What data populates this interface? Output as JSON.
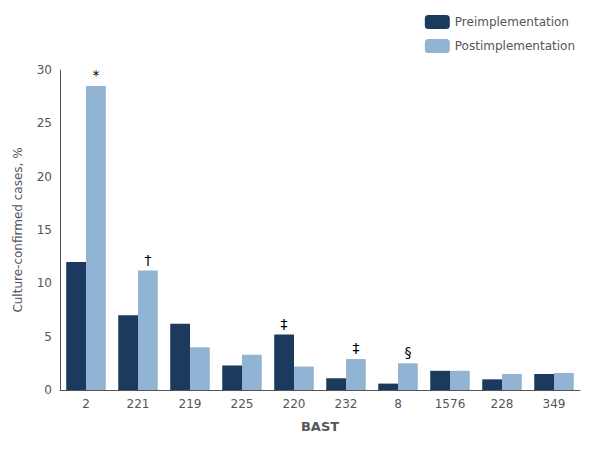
{
  "chart_data": {
    "type": "bar",
    "categories": [
      "2",
      "221",
      "219",
      "225",
      "220",
      "232",
      "8",
      "1576",
      "228",
      "349"
    ],
    "series": [
      {
        "name": "Preimplementation",
        "color": "#1b3a5e",
        "values": [
          12.0,
          7.0,
          6.2,
          2.3,
          5.2,
          1.1,
          0.6,
          1.8,
          1.0,
          1.5
        ]
      },
      {
        "name": "Postimplementation",
        "color": "#92b4d4",
        "values": [
          28.5,
          11.2,
          4.0,
          3.3,
          2.2,
          2.9,
          2.5,
          1.8,
          1.5,
          1.6
        ]
      }
    ],
    "xlabel": "BAST",
    "ylabel": "Culture-confirmed cases, %",
    "ylim": [
      0,
      30
    ],
    "yticks": [
      0,
      5,
      10,
      15,
      20,
      25,
      30
    ],
    "annotations": [
      {
        "category": "2",
        "series": "Postimplementation",
        "text": "*"
      },
      {
        "category": "221",
        "series": "Postimplementation",
        "text": "†"
      },
      {
        "category": "220",
        "series": "Preimplementation",
        "text": "‡"
      },
      {
        "category": "232",
        "series": "Postimplementation",
        "text": "‡"
      },
      {
        "category": "8",
        "series": "Postimplementation",
        "text": "§"
      }
    ],
    "legend": "upper right",
    "grid": false
  }
}
